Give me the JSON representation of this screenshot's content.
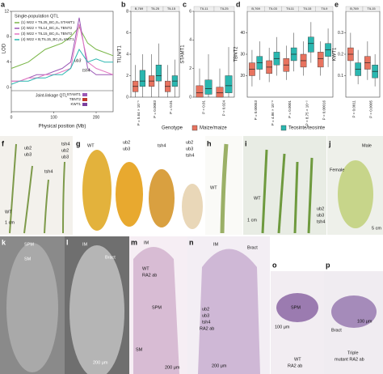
{
  "chart_data": [
    {
      "type": "line",
      "letter": "a",
      "title": "Single-population QTL",
      "y_label": "LOD",
      "x_label": "Physical position (Mb)",
      "x": [
        0,
        20,
        40,
        60,
        80,
        100,
        120,
        140,
        160,
        180,
        200,
        220,
        240
      ],
      "xlim": [
        0,
        240
      ],
      "xticks": [
        0,
        100,
        200
      ],
      "ylim": [
        0,
        12
      ],
      "yticks": [
        0,
        4,
        8,
        12
      ],
      "series": [
        {
          "name": "(1) W22 × TIL25_BC₁S₄ STAMT1",
          "color": "#7ab648",
          "values": [
            3,
            3.5,
            4,
            5,
            6,
            6.5,
            7,
            8,
            9.5,
            7,
            6,
            5.5,
            5
          ]
        },
        {
          "name": "(2) W22 × TIL14_BC₁S₄ TBNT2",
          "color": "#9b59b6",
          "values": [
            1,
            1,
            1.5,
            2,
            2,
            2.5,
            3,
            4,
            11,
            3,
            2,
            2,
            2
          ]
        },
        {
          "name": "(3) W22 × TIL15_BC₁S₄ TBNT2",
          "color": "#e377c2",
          "values": [
            1,
            1,
            1.5,
            1.5,
            2,
            2,
            2.5,
            3,
            10,
            4,
            3,
            2.5,
            2
          ]
        },
        {
          "name": "(4) W22 × B,TIL15_BC₁S₄ KWT1",
          "color": "#2ab7b0",
          "values": [
            0.5,
            1,
            1,
            1.5,
            1.5,
            2,
            2,
            3,
            6,
            4,
            4.5,
            4,
            4
          ]
        }
      ],
      "annotations": [
        "ub3",
        "tsh4"
      ],
      "joint_linkage": {
        "title": "Joint-linkage QTL",
        "traits": [
          "STAMT1",
          "TBNT2",
          "KWT1"
        ]
      }
    },
    {
      "type": "box",
      "letter": "b",
      "y_label": "TILN/T1",
      "ylim": [
        0,
        8
      ],
      "yticks": [
        0,
        2,
        4,
        6,
        8
      ],
      "categories": [
        "B,769",
        "TIL25",
        "TIL15"
      ],
      "p_values": [
        "P = 5.64 × 10⁻⁵",
        "P = 0.0083",
        "P = 0.01"
      ],
      "series": [
        {
          "color": "#e8735f",
          "values": [
            [
              0,
              0.5,
              1,
              1.5,
              3
            ],
            [
              0,
              1,
              1.5,
              2,
              4
            ],
            [
              0,
              0.5,
              1,
              1.5,
              3
            ]
          ]
        },
        {
          "color": "#2ab7b0",
          "values": [
            [
              0,
              1,
              1.5,
              2.5,
              4
            ],
            [
              0,
              1.5,
              2,
              3,
              5
            ],
            [
              0,
              1,
              1.5,
              2,
              3.5
            ]
          ]
        }
      ]
    },
    {
      "type": "box",
      "letter": "c",
      "y_label": "STAMT1",
      "ylim": [
        0,
        6
      ],
      "yticks": [
        0,
        2,
        4,
        6
      ],
      "categories": [
        "TIL11",
        "TIL25"
      ],
      "p_values": [
        "P = 0.01",
        "P = 0.024"
      ],
      "series": [
        {
          "color": "#e8735f",
          "values": [
            [
              0,
              0,
              0.3,
              0.8,
              2
            ],
            [
              0,
              0,
              0.3,
              0.7,
              2
            ]
          ]
        },
        {
          "color": "#2ab7b0",
          "values": [
            [
              0,
              0.2,
              0.6,
              1.2,
              3
            ],
            [
              0,
              0.3,
              0.8,
              1.5,
              3.5
            ]
          ]
        }
      ]
    },
    {
      "type": "box",
      "letter": "d",
      "y_label": "TBNT2",
      "ylim": [
        10,
        50
      ],
      "yticks": [
        20,
        30,
        40
      ],
      "categories": [
        "B,769",
        "TIL03",
        "TIL11",
        "TIL15",
        "TIL9"
      ],
      "p_values": [
        "P = 0.00053",
        "P = 4.86 × 10⁻⁸",
        "P = 0.0001",
        "P = 8.75 × 10⁻⁵",
        "P = 0.00016"
      ],
      "series": [
        {
          "color": "#e8735f",
          "values": [
            [
              15,
              20,
              23,
              26,
              32
            ],
            [
              17,
              21,
              24,
              27,
              33
            ],
            [
              18,
              22,
              25,
              28,
              34
            ],
            [
              20,
              24,
              27,
              30,
              36
            ],
            [
              20,
              24,
              28,
              31,
              36
            ]
          ]
        },
        {
          "color": "#2ab7b0",
          "values": [
            [
              18,
              23,
              26,
              29,
              36
            ],
            [
              20,
              25,
              28,
              31,
              38
            ],
            [
              22,
              27,
              30,
              33,
              40
            ],
            [
              26,
              31,
              35,
              38,
              45
            ],
            [
              24,
              29,
              32,
              35,
              42
            ]
          ]
        }
      ]
    },
    {
      "type": "box",
      "letter": "e",
      "y_label": "KWT1",
      "ylim": [
        0,
        0.4
      ],
      "yticks": [
        0.1,
        0.2,
        0.3
      ],
      "categories": [
        "B,769",
        "TIL15"
      ],
      "p_values": [
        "P = 0.0011",
        "P = 0.0005"
      ],
      "series": [
        {
          "color": "#e8735f",
          "values": [
            [
              0.1,
              0.17,
              0.2,
              0.23,
              0.3
            ],
            [
              0.08,
              0.13,
              0.16,
              0.19,
              0.26
            ]
          ]
        },
        {
          "color": "#2ab7b0",
          "values": [
            [
              0.06,
              0.1,
              0.13,
              0.16,
              0.22
            ],
            [
              0.05,
              0.09,
              0.12,
              0.15,
              0.2
            ]
          ]
        }
      ]
    }
  ],
  "legend": {
    "title": "Genotype",
    "items": [
      {
        "name": "Maize/maize",
        "color": "#e8735f"
      },
      {
        "name": "Teosinte/teosinte",
        "color": "#2ab7b0"
      }
    ]
  },
  "photos": [
    {
      "letter": "f",
      "labels": [
        "ub2",
        "ub3",
        "tsh4",
        "tsh4",
        "ub2",
        "ub3",
        "WT",
        "1 cm"
      ]
    },
    {
      "letter": "g",
      "labels": [
        "WT",
        "ub2",
        "ub3",
        "tsh4",
        "ub2",
        "ub3",
        "tsh4"
      ]
    },
    {
      "letter": "h",
      "labels": [
        "WT"
      ]
    },
    {
      "letter": "i",
      "labels": [
        "WT",
        "1 cm",
        "ub2",
        "ub3",
        "tsh4"
      ]
    },
    {
      "letter": "j",
      "labels": [
        "Male",
        "Female",
        "5 cm"
      ]
    },
    {
      "letter": "k",
      "labels": [
        "SPM",
        "SM"
      ]
    },
    {
      "letter": "l",
      "labels": [
        "IM",
        "Bract",
        "200 μm"
      ]
    },
    {
      "letter": "m",
      "labels": [
        "IM",
        "WT",
        "RA2 ab",
        "SPM",
        "SM",
        "200 μm"
      ]
    },
    {
      "letter": "n",
      "labels": [
        "IM",
        "Bract",
        "ub2",
        "ub3",
        "tsh4",
        "RA2 ab",
        "200 μm"
      ]
    },
    {
      "letter": "o",
      "labels": [
        "SPM",
        "100 μm",
        "WT",
        "RA2 ab"
      ]
    },
    {
      "letter": "p",
      "labels": [
        "Bract",
        "100 μm",
        "Triple",
        "mutant RA2 ab"
      ]
    }
  ]
}
